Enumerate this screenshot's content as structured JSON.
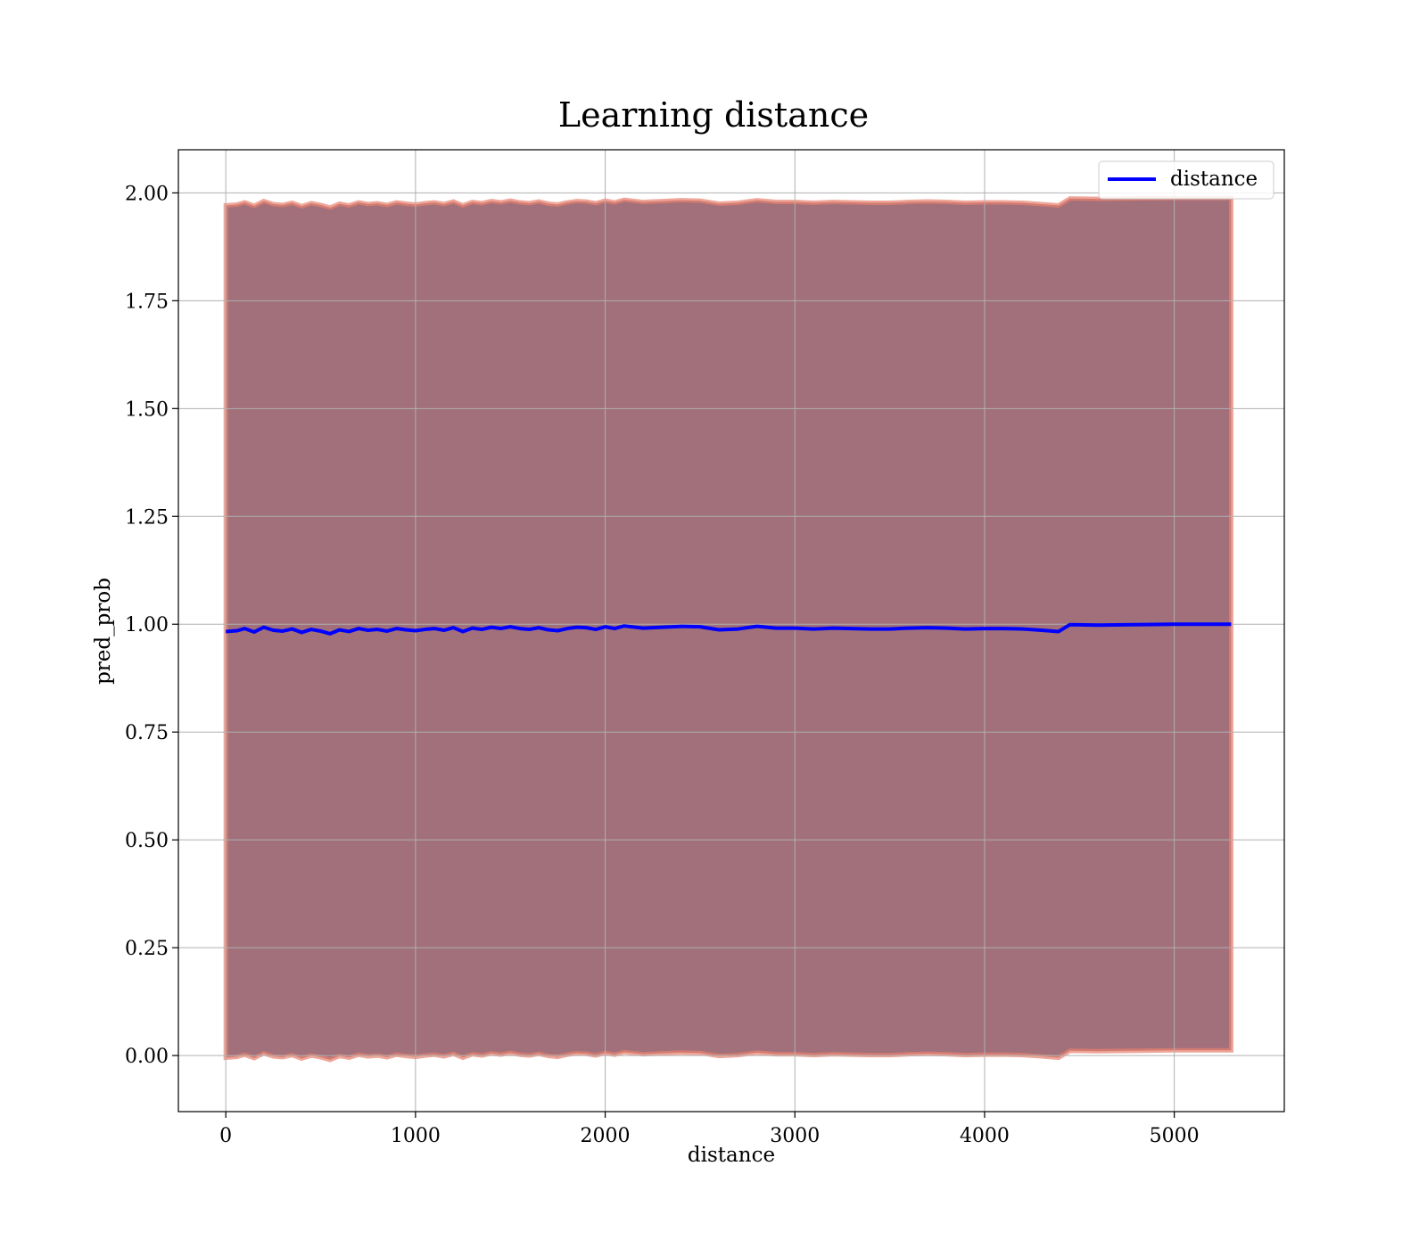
{
  "chart_data": {
    "type": "line",
    "title": "Learning distance",
    "xlabel": "distance",
    "ylabel": "pred_prob",
    "xlim": [
      -250,
      5580
    ],
    "ylim": [
      -0.13,
      2.1
    ],
    "xticks": [
      0,
      1000,
      2000,
      3000,
      4000,
      5000
    ],
    "xtick_labels": [
      "0",
      "1000",
      "2000",
      "3000",
      "4000",
      "5000"
    ],
    "yticks": [
      0.0,
      0.25,
      0.5,
      0.75,
      1.0,
      1.25,
      1.5,
      1.75,
      2.0
    ],
    "ytick_labels": [
      "0.00",
      "0.25",
      "0.50",
      "0.75",
      "1.00",
      "1.25",
      "1.50",
      "1.75",
      "2.00"
    ],
    "grid": true,
    "legend_position": "top-right",
    "legend": [
      {
        "label": "distance",
        "color": "#0000ff"
      }
    ],
    "series": [
      {
        "name": "distance",
        "color": "#0000ff",
        "x": [
          0,
          60,
          100,
          150,
          200,
          250,
          300,
          350,
          400,
          450,
          500,
          550,
          600,
          650,
          700,
          750,
          800,
          850,
          900,
          950,
          1000,
          1050,
          1100,
          1150,
          1200,
          1250,
          1300,
          1350,
          1400,
          1450,
          1500,
          1550,
          1600,
          1650,
          1700,
          1750,
          1800,
          1850,
          1900,
          1950,
          2000,
          2050,
          2100,
          2200,
          2300,
          2400,
          2500,
          2600,
          2700,
          2800,
          2900,
          3000,
          3100,
          3200,
          3300,
          3400,
          3500,
          3600,
          3700,
          3800,
          3900,
          4000,
          4100,
          4200,
          4300,
          4390,
          4450,
          4600,
          4800,
          5000,
          5300
        ],
        "y": [
          0.983,
          0.985,
          0.99,
          0.982,
          0.993,
          0.986,
          0.984,
          0.989,
          0.981,
          0.988,
          0.984,
          0.978,
          0.987,
          0.983,
          0.99,
          0.986,
          0.988,
          0.984,
          0.99,
          0.987,
          0.985,
          0.988,
          0.99,
          0.986,
          0.992,
          0.983,
          0.991,
          0.988,
          0.993,
          0.99,
          0.994,
          0.99,
          0.988,
          0.992,
          0.987,
          0.985,
          0.99,
          0.993,
          0.992,
          0.988,
          0.994,
          0.99,
          0.996,
          0.991,
          0.993,
          0.995,
          0.994,
          0.987,
          0.989,
          0.995,
          0.991,
          0.991,
          0.989,
          0.991,
          0.99,
          0.989,
          0.989,
          0.991,
          0.992,
          0.991,
          0.989,
          0.99,
          0.99,
          0.989,
          0.986,
          0.983,
          0.999,
          0.998,
          0.999,
          1.0,
          1.0
        ]
      }
    ],
    "band": {
      "fill_color": "#a1707a",
      "edge_color": "#e8806e",
      "upper_offset": 0.988,
      "lower_offset": -0.988
    }
  }
}
